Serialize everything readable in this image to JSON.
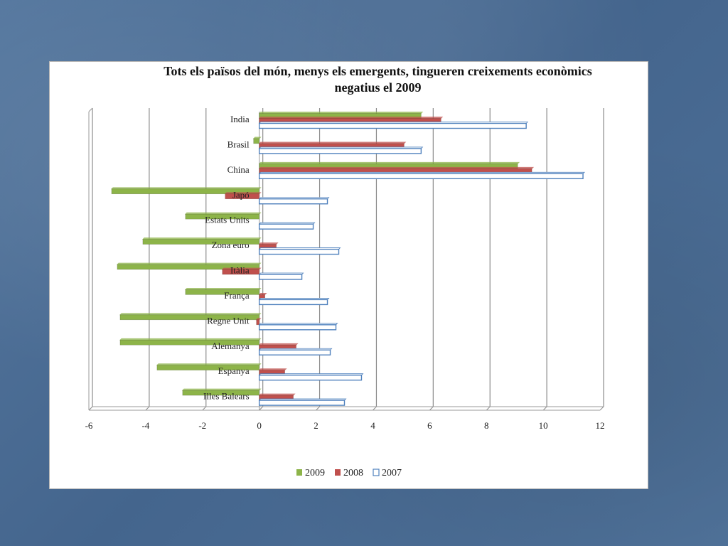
{
  "chart_data": {
    "type": "bar",
    "orientation": "horizontal",
    "title_lines": [
      "Tots els països del món, menys els emergents, tingueren creixements econòmics",
      "negatius el 2009"
    ],
    "categories": [
      "India",
      "Brasil",
      "China",
      "Japó",
      "Estats Units",
      "Zona euro",
      "Itàlia",
      "França",
      "Regne Unit",
      "Alemanya",
      "Espanya",
      "Illes Balears"
    ],
    "series": [
      {
        "name": "2009",
        "color": "#8db449",
        "values": [
          5.7,
          -0.2,
          9.1,
          -5.2,
          -2.6,
          -4.1,
          -5.0,
          -2.6,
          -4.9,
          -4.9,
          -3.6,
          -2.7
        ]
      },
      {
        "name": "2008",
        "color": "#c0504d",
        "values": [
          6.4,
          5.1,
          9.6,
          -1.2,
          0.0,
          0.6,
          -1.3,
          0.2,
          -0.1,
          1.3,
          0.9,
          1.2
        ]
      },
      {
        "name": "2007",
        "color": "#4f81bd",
        "values": [
          9.4,
          5.7,
          11.4,
          2.4,
          1.9,
          2.8,
          1.5,
          2.4,
          2.7,
          2.5,
          3.6,
          3.0
        ]
      }
    ],
    "xlim": [
      -6,
      12
    ],
    "xticks": [
      "-6",
      "-4",
      "-2",
      "0",
      "2",
      "4",
      "6",
      "8",
      "10",
      "12"
    ],
    "grid": true,
    "legend_position": "bottom"
  }
}
